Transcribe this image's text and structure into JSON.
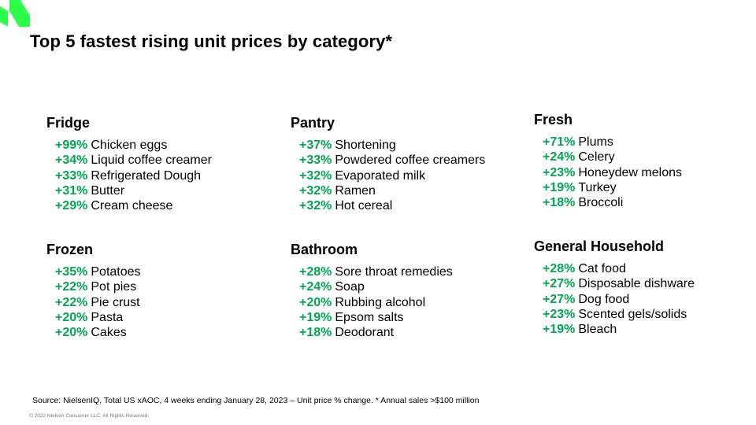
{
  "title": "Top 5 fastest rising unit prices by category*",
  "colors": {
    "accent": "#00a651",
    "logo": "#2bff4a"
  },
  "categories": [
    {
      "name": "Fridge",
      "items": [
        {
          "pct": "+99%",
          "label": "Chicken eggs"
        },
        {
          "pct": "+34%",
          "label": "Liquid coffee creamer"
        },
        {
          "pct": "+33%",
          "label": "Refrigerated Dough"
        },
        {
          "pct": "+31%",
          "label": "Butter"
        },
        {
          "pct": "+29%",
          "label": "Cream cheese"
        }
      ]
    },
    {
      "name": "Pantry",
      "items": [
        {
          "pct": "+37%",
          "label": "Shortening"
        },
        {
          "pct": "+33%",
          "label": "Powdered coffee creamers"
        },
        {
          "pct": "+32%",
          "label": "Evaporated milk"
        },
        {
          "pct": "+32%",
          "label": "Ramen"
        },
        {
          "pct": "+32%",
          "label": "Hot cereal"
        }
      ]
    },
    {
      "name": "Fresh",
      "items": [
        {
          "pct": "+71%",
          "label": "Plums"
        },
        {
          "pct": "+24%",
          "label": "Celery"
        },
        {
          "pct": "+23%",
          "label": "Honeydew melons"
        },
        {
          "pct": "+19%",
          "label": "Turkey"
        },
        {
          "pct": "+18%",
          "label": "Broccoli"
        }
      ]
    },
    {
      "name": "Frozen",
      "items": [
        {
          "pct": "+35%",
          "label": "Potatoes"
        },
        {
          "pct": "+22%",
          "label": "Pot pies"
        },
        {
          "pct": "+22%",
          "label": "Pie crust"
        },
        {
          "pct": "+20%",
          "label": "Pasta"
        },
        {
          "pct": "+20%",
          "label": "Cakes"
        }
      ]
    },
    {
      "name": "Bathroom",
      "items": [
        {
          "pct": "+28%",
          "label": "Sore throat remedies"
        },
        {
          "pct": "+24%",
          "label": "Soap"
        },
        {
          "pct": "+20%",
          "label": "Rubbing alcohol"
        },
        {
          "pct": "+19%",
          "label": "Epsom salts"
        },
        {
          "pct": "+18%",
          "label": "Deodorant"
        }
      ]
    },
    {
      "name": "General Household",
      "items": [
        {
          "pct": "+28%",
          "label": "Cat food"
        },
        {
          "pct": "+27%",
          "label": "Disposable dishware"
        },
        {
          "pct": "+27%",
          "label": "Dog food"
        },
        {
          "pct": "+23%",
          "label": "Scented gels/solids"
        },
        {
          "pct": "+19%",
          "label": "Bleach"
        }
      ]
    }
  ],
  "source": "Source: NielsenIQ, Total US xAOC,  4 weeks ending January 28,  2023  – Unit price % change. * Annual sales >$100 million",
  "copyright": "© 2022 Nielsen Consumer LLC. All Rights Reserved."
}
